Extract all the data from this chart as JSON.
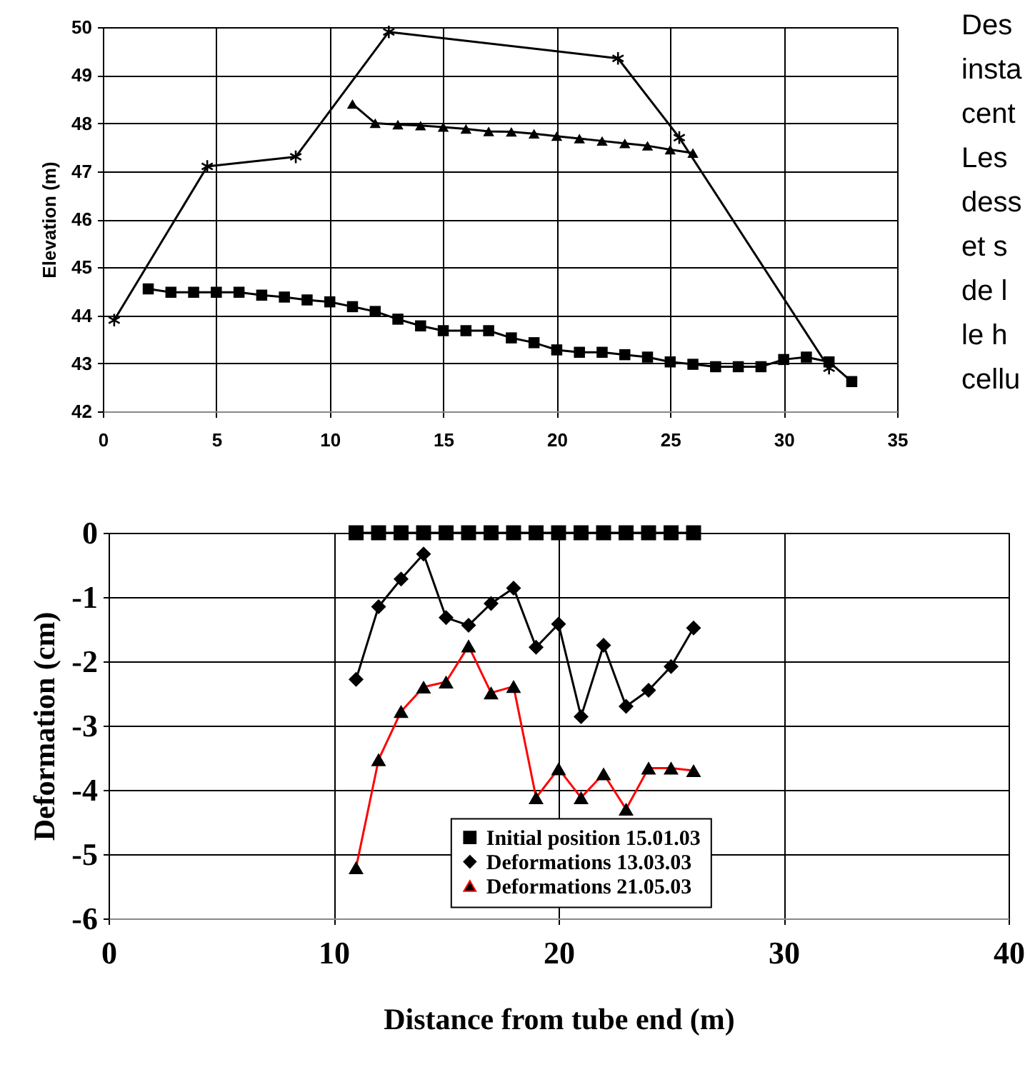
{
  "chart_data": [
    {
      "type": "line",
      "ylabel": "Elevation (m)",
      "xlim": [
        0,
        35
      ],
      "xticks": [
        0,
        5,
        10,
        15,
        20,
        25,
        30,
        35
      ],
      "ylim": [
        42,
        50
      ],
      "yticks": [
        42,
        43,
        44,
        45,
        46,
        47,
        48,
        49,
        50
      ],
      "grid": true,
      "line_style": "solid",
      "series": [
        {
          "color": "#000000",
          "marker": "cross",
          "x": [
            0.5,
            4.6,
            8.5,
            12.6,
            22.7,
            25.4,
            32
          ],
          "values": [
            43.9,
            47.1,
            47.3,
            49.9,
            49.35,
            47.7,
            42.9
          ]
        },
        {
          "color": "#000000",
          "marker": "triangle",
          "x": [
            11,
            12,
            13,
            14,
            15,
            16,
            17,
            18,
            19,
            20,
            21,
            22,
            23,
            24,
            25,
            26
          ],
          "values": [
            48.4,
            48.0,
            47.97,
            47.95,
            47.92,
            47.88,
            47.83,
            47.82,
            47.78,
            47.73,
            47.68,
            47.63,
            47.58,
            47.53,
            47.45,
            47.38
          ]
        },
        {
          "color": "#000000",
          "marker": "square",
          "x": [
            2,
            3,
            4,
            5,
            6,
            7,
            8,
            9,
            10,
            11,
            12,
            13,
            14,
            15,
            16,
            17,
            18,
            19,
            20,
            21,
            22,
            23,
            24,
            25,
            26,
            27,
            28,
            29,
            30,
            31,
            32,
            33
          ],
          "values": [
            44.55,
            44.48,
            44.48,
            44.48,
            44.48,
            44.42,
            44.38,
            44.32,
            44.28,
            44.18,
            44.08,
            43.92,
            43.78,
            43.68,
            43.68,
            43.68,
            43.53,
            43.43,
            43.28,
            43.23,
            43.23,
            43.18,
            43.13,
            43.03,
            42.98,
            42.93,
            42.93,
            42.93,
            43.08,
            43.13,
            43.03,
            42.62
          ]
        }
      ]
    },
    {
      "type": "line",
      "xlabel": "Distance from tube end (m)",
      "ylabel": "Deformation (cm)",
      "xlim": [
        0,
        40
      ],
      "xticks": [
        0,
        10,
        20,
        30,
        40
      ],
      "ylim": [
        -6,
        0
      ],
      "yticks": [
        -6,
        -5,
        -4,
        -3,
        -2,
        -1,
        0
      ],
      "grid": true,
      "legend": "bottom",
      "line_style": "solid",
      "x": [
        11,
        12,
        13,
        14,
        15,
        16,
        17,
        18,
        19,
        20,
        21,
        22,
        23,
        24,
        25,
        26
      ],
      "series": [
        {
          "name": "Initial position 15.01.03",
          "color": "#000000",
          "marker": "square",
          "values": [
            0,
            0,
            0,
            0,
            0,
            0,
            0,
            0,
            0,
            0,
            0,
            0,
            0,
            0,
            0,
            0
          ]
        },
        {
          "name": "Deformations 13.03.03",
          "color": "#000000",
          "marker": "diamond",
          "values": [
            -2.28,
            -1.15,
            -0.72,
            -0.33,
            -1.32,
            -1.44,
            -1.1,
            -0.86,
            -1.78,
            -1.42,
            -2.86,
            -1.75,
            -2.7,
            -2.45,
            -2.08,
            -1.48
          ]
        },
        {
          "name": "Deformations 21.05.03",
          "color": "#ff0000",
          "marker": "triangle",
          "values": [
            -5.21,
            -3.53,
            -2.78,
            -2.4,
            -2.32,
            -1.76,
            -2.49,
            -2.39,
            -4.12,
            -3.67,
            -4.12,
            -3.75,
            -4.3,
            -3.66,
            -3.66,
            -3.7
          ]
        }
      ]
    },
    {
      "type": "other",
      "annotations": [
        "Des",
        "insta",
        "cent",
        "Les",
        "dess",
        "et s",
        "de l",
        "le h",
        "cellu"
      ]
    }
  ]
}
